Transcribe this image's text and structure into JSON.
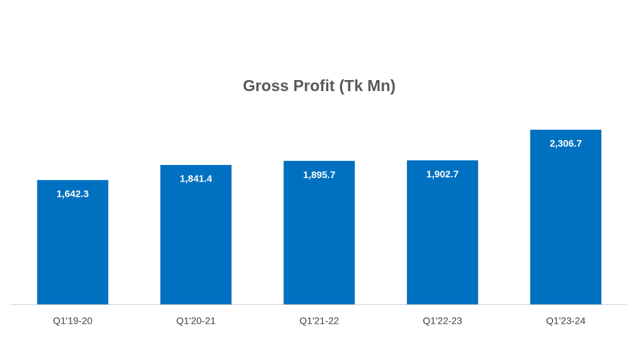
{
  "chart_data": {
    "type": "bar",
    "title": "Gross Profit (Tk Mn)",
    "categories": [
      "Q1'19-20",
      "Q1'20-21",
      "Q1'21-22",
      "Q1'22-23",
      "Q1'23-24"
    ],
    "values": [
      1642.3,
      1841.4,
      1895.7,
      1902.7,
      2306.7
    ],
    "value_labels": [
      "1,642.3",
      "1,841.4",
      "1,895.7",
      "1,902.7",
      "2,306.7"
    ],
    "color": "#0070c0"
  }
}
